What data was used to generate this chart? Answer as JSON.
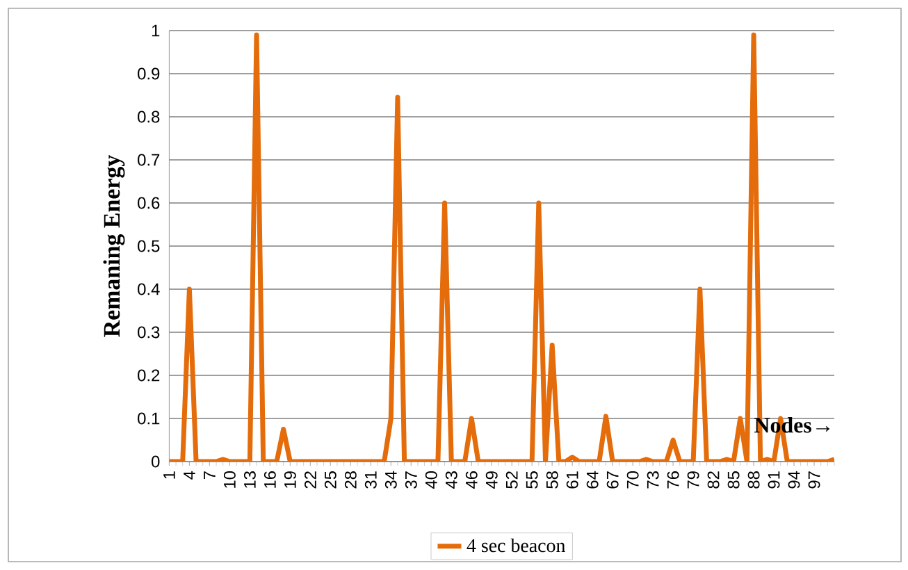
{
  "chart_data": {
    "type": "line",
    "xlabel": "Nodes→",
    "ylabel": "Remaning Energy",
    "categories": [
      "1",
      null,
      null,
      "4",
      null,
      null,
      "7",
      null,
      null,
      "10",
      null,
      null,
      "13",
      null,
      null,
      "16",
      null,
      null,
      "19",
      null,
      null,
      "22",
      null,
      null,
      "25",
      null,
      null,
      "28",
      null,
      null,
      "31",
      null,
      null,
      "34",
      null,
      null,
      "37",
      null,
      null,
      "40",
      null,
      null,
      "43",
      null,
      null,
      "46",
      null,
      null,
      "49",
      null,
      null,
      "52",
      null,
      null,
      "55",
      null,
      null,
      "58",
      null,
      null,
      "61",
      null,
      null,
      "64",
      null,
      null,
      "67",
      null,
      null,
      "70",
      null,
      null,
      "73",
      null,
      null,
      "76",
      null,
      null,
      "79",
      null,
      null,
      "82",
      null,
      null,
      "85",
      null,
      null,
      "88",
      null,
      null,
      "91",
      null,
      null,
      "94",
      null,
      null,
      "97",
      null,
      null,
      null
    ],
    "series": [
      {
        "name": "4 sec beacon",
        "color": "#e46c0a",
        "values": [
          0,
          0,
          0,
          0.4,
          0,
          0,
          0,
          0,
          0.005,
          0,
          0,
          0,
          0,
          0.99,
          0,
          0,
          0,
          0.075,
          0,
          0,
          0,
          0,
          0,
          0,
          0,
          0,
          0,
          0,
          0,
          0,
          0,
          0,
          0,
          0.1,
          0.845,
          0,
          0,
          0,
          0,
          0,
          0,
          0.6,
          0,
          0,
          0,
          0.1,
          0,
          0,
          0,
          0,
          0,
          0,
          0,
          0,
          0,
          0.6,
          0,
          0.27,
          0,
          0,
          0.01,
          0,
          0,
          0,
          0,
          0.105,
          0,
          0,
          0,
          0,
          0,
          0.005,
          0,
          0,
          0,
          0.05,
          0,
          0,
          0,
          0.4,
          0,
          0,
          0,
          0.005,
          0,
          0.1,
          0,
          0.99,
          0,
          0.005,
          0,
          0.1,
          0,
          0,
          0,
          0,
          0,
          0,
          0,
          0.005
        ]
      }
    ],
    "ylim": [
      0,
      1
    ],
    "yticks": [
      0,
      0.1,
      0.2,
      0.3,
      0.4,
      0.5,
      0.6,
      0.7,
      0.8,
      0.9,
      1
    ],
    "grid": "y",
    "legend": "bottom",
    "marker": "none",
    "line_style": "solid"
  }
}
